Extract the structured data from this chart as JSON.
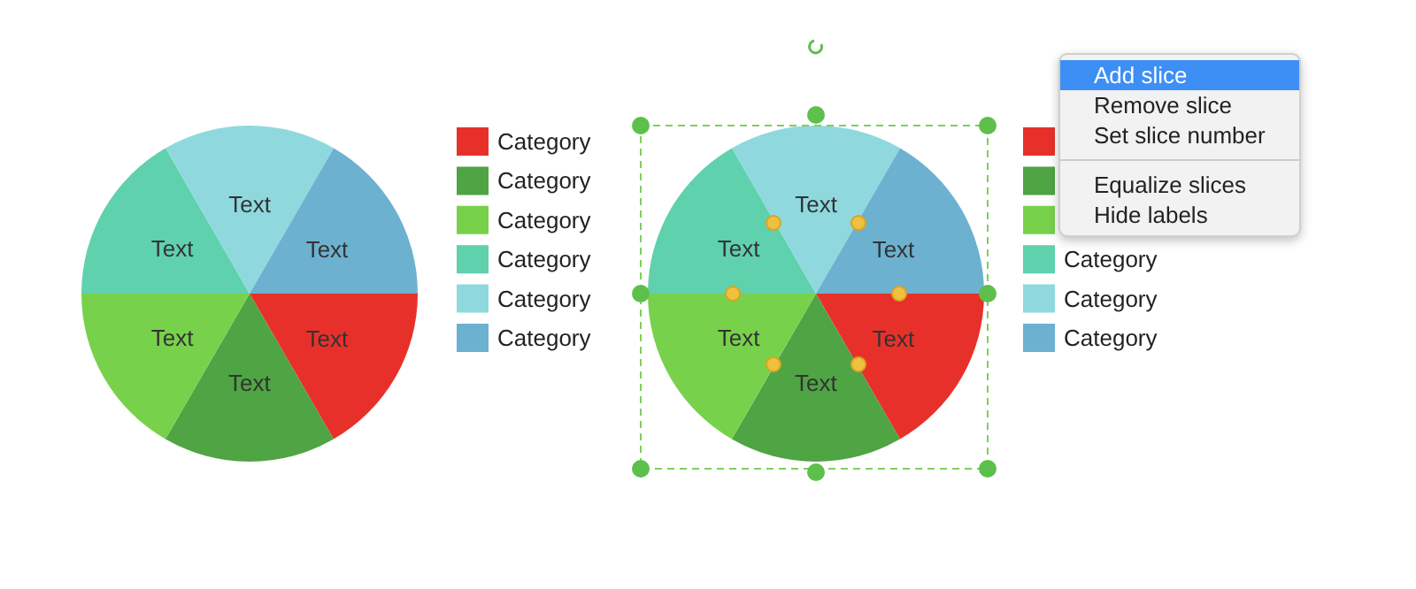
{
  "chart_data": [
    {
      "type": "pie",
      "categories": [
        "Category",
        "Category",
        "Category",
        "Category",
        "Category",
        "Category"
      ],
      "values": [
        16.67,
        16.67,
        16.66,
        16.67,
        16.67,
        16.66
      ],
      "colors": [
        "#e8302a",
        "#4fa443",
        "#77d14b",
        "#5fd1ad",
        "#8fd9de",
        "#6db1d1"
      ],
      "value_labels": [
        "Text",
        "Text",
        "Text",
        "Text",
        "Text",
        "Text"
      ],
      "legend": "right"
    },
    {
      "type": "pie",
      "categories": [
        null,
        null,
        null,
        "Category",
        "Category",
        "Category"
      ],
      "values": [
        16.67,
        16.67,
        16.66,
        16.67,
        16.67,
        16.66
      ],
      "colors": [
        "#e8302a",
        "#4fa443",
        "#77d14b",
        "#5fd1ad",
        "#8fd9de",
        "#6db1d1"
      ],
      "value_labels": [
        "Text",
        "Text",
        "Text",
        "Text",
        "Text",
        "Text"
      ],
      "legend": "right",
      "annotations": [
        "Add slice",
        "Remove slice",
        "Set slice number",
        "Equalize slices",
        "Hide labels"
      ]
    }
  ]
}
